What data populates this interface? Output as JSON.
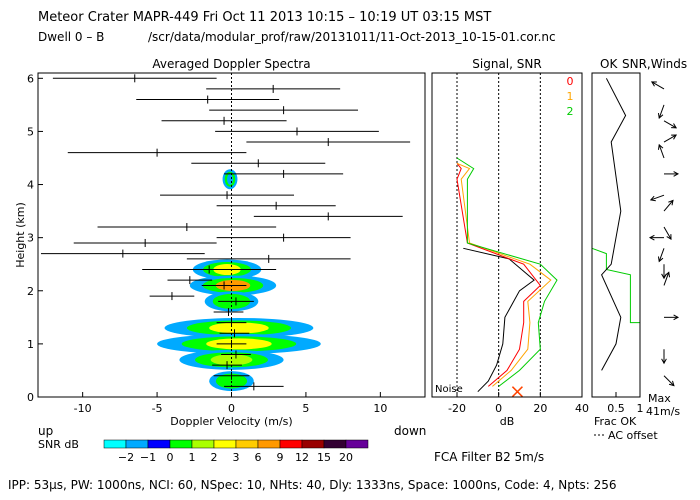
{
  "header": {
    "title": "Meteor Crater  MAPR-449  Fri Oct 11 2013 10:15 – 10:19 UT 03:15 MST",
    "dwell": "Dwell  0 –  B",
    "path": "/scr/data/modular_prof/raw/20131011/11-Oct-2013_10-15-01.cor.nc"
  },
  "footer": {
    "params": "IPP: 53μs, PW: 1000ns, NCI: 60, NSpec: 10, NHts: 40, Dly: 1333ns, Space: 1000ns, Code: 4, Npts: 256",
    "fca": "FCA Filter B2  5m/s"
  },
  "colors": {
    "snr_0": "#ff0000",
    "snr_1": "#ffa500",
    "snr_2": "#00cc00",
    "frac": "#00cc00"
  },
  "chart_data": [
    {
      "type": "heatmap",
      "title": "Averaged Doppler Spectra",
      "xlabel": "Doppler Velocity (m/s)",
      "ylabel": "Height (km)",
      "xlim": [
        -13,
        13
      ],
      "ylim": [
        0,
        6.1
      ],
      "xticks": [
        -10,
        -5,
        0,
        5,
        10
      ],
      "yticks": [
        0,
        1,
        2,
        3,
        4,
        5,
        6
      ],
      "left_note": "up",
      "right_note": "down",
      "colorbar_label": "SNR dB",
      "colorbar_ticks": [
        "−2",
        "−1",
        "0",
        "1",
        "2",
        "3",
        "6",
        "9",
        "12",
        "15",
        "20"
      ],
      "colorbar_colors": [
        "#00ffff",
        "#00aaff",
        "#0000ff",
        "#00ff00",
        "#aaff00",
        "#ffff00",
        "#ffcc00",
        "#ff9900",
        "#ff0000",
        "#990000",
        "#330033",
        "#660099"
      ],
      "spectra_blobs": [
        {
          "h": 2.4,
          "vmin": -2.6,
          "vmax": 2.0,
          "peak": "#ffff00"
        },
        {
          "h": 2.1,
          "vmin": -2.8,
          "vmax": 3.0,
          "peak": "#ff9900"
        },
        {
          "h": 1.8,
          "vmin": -1.8,
          "vmax": 1.8,
          "peak": "#00ff00"
        },
        {
          "h": 1.3,
          "vmin": -4.5,
          "vmax": 5.5,
          "peak": "#ffff00"
        },
        {
          "h": 1.0,
          "vmin": -5.0,
          "vmax": 6.0,
          "peak": "#ffff00"
        },
        {
          "h": 0.7,
          "vmin": -3.5,
          "vmax": 3.5,
          "peak": "#aaff00"
        },
        {
          "h": 0.3,
          "vmin": -1.5,
          "vmax": 1.5,
          "peak": "#00ff00"
        },
        {
          "h": 4.1,
          "vmin": -0.6,
          "vmax": 0.4,
          "peak": "#00aaff"
        }
      ],
      "velocity_estimates": [
        {
          "h": 6.0,
          "v": -6.5,
          "hw": 5.5
        },
        {
          "h": 5.8,
          "v": 2.8,
          "hw": 4.5
        },
        {
          "h": 5.6,
          "v": -1.6,
          "hw": 4.8
        },
        {
          "h": 5.4,
          "v": 3.5,
          "hw": 5.0
        },
        {
          "h": 5.2,
          "v": -0.5,
          "hw": 4.2
        },
        {
          "h": 5.0,
          "v": 4.4,
          "hw": 5.5
        },
        {
          "h": 4.8,
          "v": 6.5,
          "hw": 5.5
        },
        {
          "h": 4.6,
          "v": -5.0,
          "hw": 6.0
        },
        {
          "h": 4.4,
          "v": 1.8,
          "hw": 4.5
        },
        {
          "h": 4.2,
          "v": 3.5,
          "hw": 4.0
        },
        {
          "h": 3.8,
          "v": -0.3,
          "hw": 4.5
        },
        {
          "h": 3.6,
          "v": 3.0,
          "hw": 4.0
        },
        {
          "h": 3.4,
          "v": 6.5,
          "hw": 5.0
        },
        {
          "h": 3.2,
          "v": -3.0,
          "hw": 6.0
        },
        {
          "h": 3.0,
          "v": 3.5,
          "hw": 4.5
        },
        {
          "h": 2.9,
          "v": -5.8,
          "hw": 4.8
        },
        {
          "h": 2.7,
          "v": -7.3,
          "hw": 5.5
        },
        {
          "h": 2.6,
          "v": 2.5,
          "hw": 5.5
        },
        {
          "h": 2.4,
          "v": -1.5,
          "hw": 4.5
        },
        {
          "h": 2.2,
          "v": -2.8,
          "hw": 1.5
        },
        {
          "h": 2.1,
          "v": -0.5,
          "hw": 1.5
        },
        {
          "h": 1.9,
          "v": -4.0,
          "hw": 1.5
        },
        {
          "h": 1.8,
          "v": 0.3,
          "hw": 1.2
        },
        {
          "h": 1.6,
          "v": -0.2,
          "hw": 1.0
        },
        {
          "h": 1.4,
          "v": 0.0,
          "hw": 1.0
        },
        {
          "h": 1.2,
          "v": 0.2,
          "hw": 1.0
        },
        {
          "h": 1.0,
          "v": 0.0,
          "hw": 1.0
        },
        {
          "h": 0.8,
          "v": 0.3,
          "hw": 1.0
        },
        {
          "h": 0.6,
          "v": -0.3,
          "hw": 1.0
        },
        {
          "h": 0.4,
          "v": 0.0,
          "hw": 1.2
        },
        {
          "h": 0.2,
          "v": 1.5,
          "hw": 2.0
        }
      ]
    },
    {
      "type": "line",
      "title": "Signal, SNR",
      "xlabel": "dB",
      "xlim": [
        -32,
        40
      ],
      "xticks": [
        -20,
        0,
        20,
        40
      ],
      "noise_label": "Noise",
      "legend": [
        "0",
        "1",
        "2"
      ],
      "reference_lines_db": [
        -20,
        0,
        20
      ],
      "series": [
        {
          "name": "noise",
          "color": "#000000",
          "points": [
            [
              -10,
              0.1
            ],
            [
              -5,
              0.3
            ],
            [
              -1,
              0.6
            ],
            [
              2,
              1.0
            ],
            [
              3,
              1.5
            ],
            [
              10,
              2.0
            ],
            [
              17,
              2.2
            ],
            [
              5,
              2.6
            ],
            [
              -17,
              2.8
            ]
          ]
        },
        {
          "name": "0",
          "color": "#ff0000",
          "points": [
            [
              -5,
              0.2
            ],
            [
              4,
              0.5
            ],
            [
              10,
              0.9
            ],
            [
              12,
              1.4
            ],
            [
              12,
              1.8
            ],
            [
              20,
              2.1
            ],
            [
              12,
              2.5
            ],
            [
              -15,
              2.9
            ],
            [
              -20,
              4.1
            ],
            [
              -18,
              4.3
            ],
            [
              -20,
              4.4
            ]
          ]
        },
        {
          "name": "1",
          "color": "#ffa500",
          "points": [
            [
              -3,
              0.2
            ],
            [
              6,
              0.5
            ],
            [
              14,
              0.9
            ],
            [
              15,
              1.4
            ],
            [
              14,
              1.8
            ],
            [
              25,
              2.2
            ],
            [
              15,
              2.5
            ],
            [
              -14,
              2.9
            ],
            [
              -18,
              4.1
            ],
            [
              -14,
              4.3
            ],
            [
              -20,
              4.4
            ]
          ]
        },
        {
          "name": "2",
          "color": "#00cc00",
          "points": [
            [
              0,
              0.2
            ],
            [
              10,
              0.5
            ],
            [
              20,
              0.9
            ],
            [
              19,
              1.4
            ],
            [
              22,
              1.8
            ],
            [
              28,
              2.2
            ],
            [
              20,
              2.5
            ],
            [
              -15,
              2.9
            ],
            [
              -15,
              4.1
            ],
            [
              -12,
              4.3
            ],
            [
              -20,
              4.5
            ]
          ]
        }
      ],
      "marker_x": [
        9,
        0.1
      ]
    },
    {
      "type": "line",
      "title": "OK SNR,Winds",
      "xlabel": "Frac OK",
      "xlim": [
        0,
        1
      ],
      "xticks": [
        "0.5",
        "1"
      ],
      "ok_label": "OK",
      "note": "AC offset",
      "max_label": "Max",
      "max_value": "41m/s",
      "frac_series": [
        [
          0.0,
          6.0
        ],
        [
          0.0,
          3.0
        ],
        [
          0.0,
          2.8
        ],
        [
          0.3,
          2.7
        ],
        [
          0.3,
          2.4
        ],
        [
          0.8,
          2.3
        ],
        [
          0.8,
          1.4
        ],
        [
          1.0,
          1.4
        ],
        [
          1.0,
          0.0
        ]
      ],
      "black_series": [
        [
          0.3,
          6.0
        ],
        [
          0.7,
          5.3
        ],
        [
          0.4,
          4.8
        ],
        [
          0.6,
          3.5
        ],
        [
          0.4,
          2.5
        ],
        [
          0.2,
          2.3
        ],
        [
          0.6,
          1.5
        ],
        [
          0.5,
          1.0
        ],
        [
          0.2,
          0.5
        ]
      ],
      "wind_barbs": [
        {
          "h": 5.8,
          "dir": 300
        },
        {
          "h": 5.5,
          "dir": 200
        },
        {
          "h": 5.2,
          "dir": 120
        },
        {
          "h": 4.8,
          "dir": 60
        },
        {
          "h": 4.5,
          "dir": 340
        },
        {
          "h": 4.2,
          "dir": 90
        },
        {
          "h": 3.8,
          "dir": 250
        },
        {
          "h": 3.5,
          "dir": 40
        },
        {
          "h": 3.2,
          "dir": 150
        },
        {
          "h": 3.0,
          "dir": 270
        },
        {
          "h": 2.8,
          "dir": 200
        },
        {
          "h": 2.5,
          "dir": 180
        },
        {
          "h": 2.1,
          "dir": 20
        },
        {
          "h": 1.5,
          "dir": 90
        },
        {
          "h": 0.9,
          "dir": 180
        },
        {
          "h": 0.4,
          "dir": 135
        }
      ]
    }
  ]
}
